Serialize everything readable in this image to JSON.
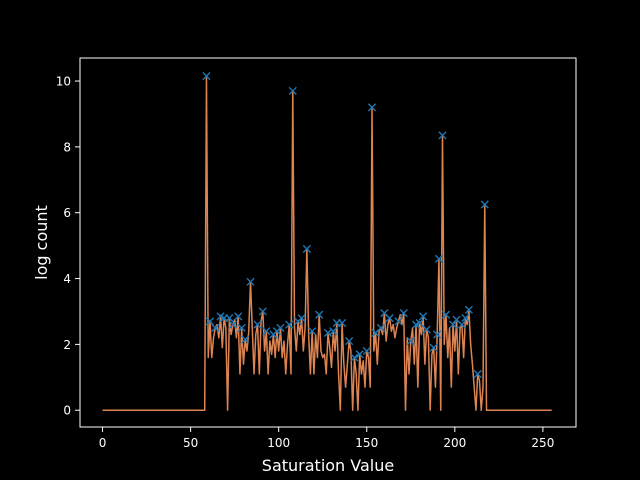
{
  "chart_data": {
    "type": "line",
    "xlabel": "Saturation Value",
    "ylabel": "log count",
    "xlim": [
      -12.8,
      268.8
    ],
    "ylim": [
      -0.51,
      10.7
    ],
    "xticks": [
      0,
      50,
      100,
      150,
      200,
      250
    ],
    "yticks": [
      0,
      2,
      4,
      6,
      8,
      10
    ],
    "grid": false,
    "colors": {
      "line": "#dd8452",
      "peak_marker": "#1f77b4",
      "background": "#000000",
      "axes": "#ffffff"
    },
    "series": [
      {
        "points": [
          [
            0,
            0
          ],
          [
            58,
            0
          ],
          [
            59,
            10.15
          ],
          [
            60,
            1.6
          ],
          [
            61,
            2.7
          ],
          [
            62,
            1.6
          ],
          [
            63,
            2.2
          ],
          [
            64,
            2.5
          ],
          [
            65,
            2.6
          ],
          [
            66,
            2.2
          ],
          [
            67,
            2.85
          ],
          [
            68,
            1.9
          ],
          [
            69,
            2.8
          ],
          [
            70,
            2.5
          ],
          [
            71,
            0
          ],
          [
            72,
            2.8
          ],
          [
            73,
            2.3
          ],
          [
            74,
            2.6
          ],
          [
            75,
            2.75
          ],
          [
            76,
            2.2
          ],
          [
            77,
            2.85
          ],
          [
            78,
            1.1
          ],
          [
            79,
            2.5
          ],
          [
            80,
            1.4
          ],
          [
            81,
            2.15
          ],
          [
            82,
            1.8
          ],
          [
            83,
            2.4
          ],
          [
            84,
            3.9
          ],
          [
            85,
            2.5
          ],
          [
            86,
            1.1
          ],
          [
            87,
            2.3
          ],
          [
            88,
            2.6
          ],
          [
            89,
            1.1
          ],
          [
            90,
            2.7
          ],
          [
            91,
            3.0
          ],
          [
            92,
            1.8
          ],
          [
            93,
            2.4
          ],
          [
            94,
            1.1
          ],
          [
            95,
            2.1
          ],
          [
            96,
            1.7
          ],
          [
            97,
            2.3
          ],
          [
            98,
            1.6
          ],
          [
            99,
            2.4
          ],
          [
            100,
            1.8
          ],
          [
            101,
            2.5
          ],
          [
            102,
            1.6
          ],
          [
            103,
            2.1
          ],
          [
            104,
            1.1
          ],
          [
            105,
            2.0
          ],
          [
            106,
            2.6
          ],
          [
            107,
            1.1
          ],
          [
            108,
            9.7
          ],
          [
            109,
            2.5
          ],
          [
            110,
            1.8
          ],
          [
            111,
            2.7
          ],
          [
            112,
            2.3
          ],
          [
            113,
            2.8
          ],
          [
            114,
            1.8
          ],
          [
            115,
            2.5
          ],
          [
            116,
            4.9
          ],
          [
            117,
            2.3
          ],
          [
            118,
            1.1
          ],
          [
            119,
            2.4
          ],
          [
            120,
            1.1
          ],
          [
            121,
            2.3
          ],
          [
            122,
            1.6
          ],
          [
            123,
            2.9
          ],
          [
            124,
            1.8
          ],
          [
            125,
            1.6
          ],
          [
            126,
            1.7
          ],
          [
            127,
            1.1
          ],
          [
            128,
            2.35
          ],
          [
            129,
            1.9
          ],
          [
            130,
            1.3
          ],
          [
            131,
            2.4
          ],
          [
            132,
            1.8
          ],
          [
            133,
            2.65
          ],
          [
            134,
            1.1
          ],
          [
            135,
            0
          ],
          [
            136,
            2.65
          ],
          [
            137,
            1.4
          ],
          [
            138,
            0.7
          ],
          [
            139,
            1.4
          ],
          [
            140,
            2.1
          ],
          [
            141,
            1.8
          ],
          [
            142,
            0
          ],
          [
            143,
            1.6
          ],
          [
            144,
            1.1
          ],
          [
            145,
            0
          ],
          [
            146,
            1.7
          ],
          [
            147,
            1.1
          ],
          [
            148,
            1.5
          ],
          [
            149,
            0.7
          ],
          [
            150,
            1.8
          ],
          [
            151,
            1.6
          ],
          [
            152,
            0.7
          ],
          [
            153,
            9.2
          ],
          [
            154,
            1.8
          ],
          [
            155,
            2.35
          ],
          [
            156,
            1.4
          ],
          [
            157,
            2.4
          ],
          [
            158,
            2.5
          ],
          [
            159,
            2.3
          ],
          [
            160,
            2.95
          ],
          [
            161,
            2.1
          ],
          [
            162,
            2.6
          ],
          [
            163,
            2.8
          ],
          [
            164,
            2.4
          ],
          [
            165,
            2.6
          ],
          [
            166,
            2.2
          ],
          [
            167,
            2.5
          ],
          [
            168,
            2.7
          ],
          [
            169,
            2.9
          ],
          [
            170,
            2.6
          ],
          [
            171,
            2.95
          ],
          [
            172,
            0
          ],
          [
            173,
            2.2
          ],
          [
            174,
            1.1
          ],
          [
            175,
            2.1
          ],
          [
            176,
            2.5
          ],
          [
            177,
            1.4
          ],
          [
            178,
            2.6
          ],
          [
            179,
            0.7
          ],
          [
            180,
            2.65
          ],
          [
            181,
            2.3
          ],
          [
            182,
            2.85
          ],
          [
            183,
            1.4
          ],
          [
            184,
            2.45
          ],
          [
            185,
            2.2
          ],
          [
            186,
            0
          ],
          [
            187,
            1.7
          ],
          [
            188,
            1.9
          ],
          [
            189,
            0.7
          ],
          [
            190,
            2.3
          ],
          [
            191,
            4.6
          ],
          [
            192,
            0
          ],
          [
            193,
            8.35
          ],
          [
            194,
            2.0
          ],
          [
            195,
            2.9
          ],
          [
            196,
            1.6
          ],
          [
            197,
            2.5
          ],
          [
            198,
            0.7
          ],
          [
            199,
            2.6
          ],
          [
            200,
            1.8
          ],
          [
            201,
            2.75
          ],
          [
            202,
            1.1
          ],
          [
            203,
            2.5
          ],
          [
            204,
            2.6
          ],
          [
            205,
            1.6
          ],
          [
            206,
            2.8
          ],
          [
            207,
            2.6
          ],
          [
            208,
            3.05
          ],
          [
            209,
            2.0
          ],
          [
            210,
            1.4
          ],
          [
            211,
            0.7
          ],
          [
            212,
            0
          ],
          [
            213,
            1.1
          ],
          [
            214,
            0.9
          ],
          [
            215,
            0
          ],
          [
            216,
            0.7
          ],
          [
            217,
            6.25
          ],
          [
            218,
            0
          ],
          [
            255,
            0
          ]
        ],
        "peaks": [
          [
            59,
            10.15
          ],
          [
            61,
            2.7
          ],
          [
            64,
            2.5
          ],
          [
            67,
            2.85
          ],
          [
            69,
            2.8
          ],
          [
            72,
            2.8
          ],
          [
            74,
            2.6
          ],
          [
            77,
            2.85
          ],
          [
            79,
            2.5
          ],
          [
            81,
            2.15
          ],
          [
            84,
            3.9
          ],
          [
            88,
            2.6
          ],
          [
            91,
            3.0
          ],
          [
            93,
            2.4
          ],
          [
            97,
            2.3
          ],
          [
            99,
            2.4
          ],
          [
            101,
            2.5
          ],
          [
            106,
            2.6
          ],
          [
            108,
            9.7
          ],
          [
            111,
            2.7
          ],
          [
            113,
            2.8
          ],
          [
            116,
            4.9
          ],
          [
            119,
            2.4
          ],
          [
            123,
            2.9
          ],
          [
            128,
            2.35
          ],
          [
            131,
            2.4
          ],
          [
            133,
            2.65
          ],
          [
            136,
            2.65
          ],
          [
            140,
            2.1
          ],
          [
            143,
            1.6
          ],
          [
            146,
            1.7
          ],
          [
            150,
            1.8
          ],
          [
            153,
            9.2
          ],
          [
            155,
            2.35
          ],
          [
            158,
            2.5
          ],
          [
            160,
            2.95
          ],
          [
            163,
            2.8
          ],
          [
            168,
            2.7
          ],
          [
            171,
            2.95
          ],
          [
            175,
            2.1
          ],
          [
            178,
            2.6
          ],
          [
            180,
            2.65
          ],
          [
            182,
            2.85
          ],
          [
            184,
            2.45
          ],
          [
            188,
            1.9
          ],
          [
            190,
            2.3
          ],
          [
            191,
            4.6
          ],
          [
            193,
            8.35
          ],
          [
            195,
            2.9
          ],
          [
            199,
            2.6
          ],
          [
            201,
            2.75
          ],
          [
            204,
            2.6
          ],
          [
            206,
            2.8
          ],
          [
            208,
            3.05
          ],
          [
            213,
            1.1
          ],
          [
            217,
            6.25
          ]
        ]
      }
    ]
  }
}
